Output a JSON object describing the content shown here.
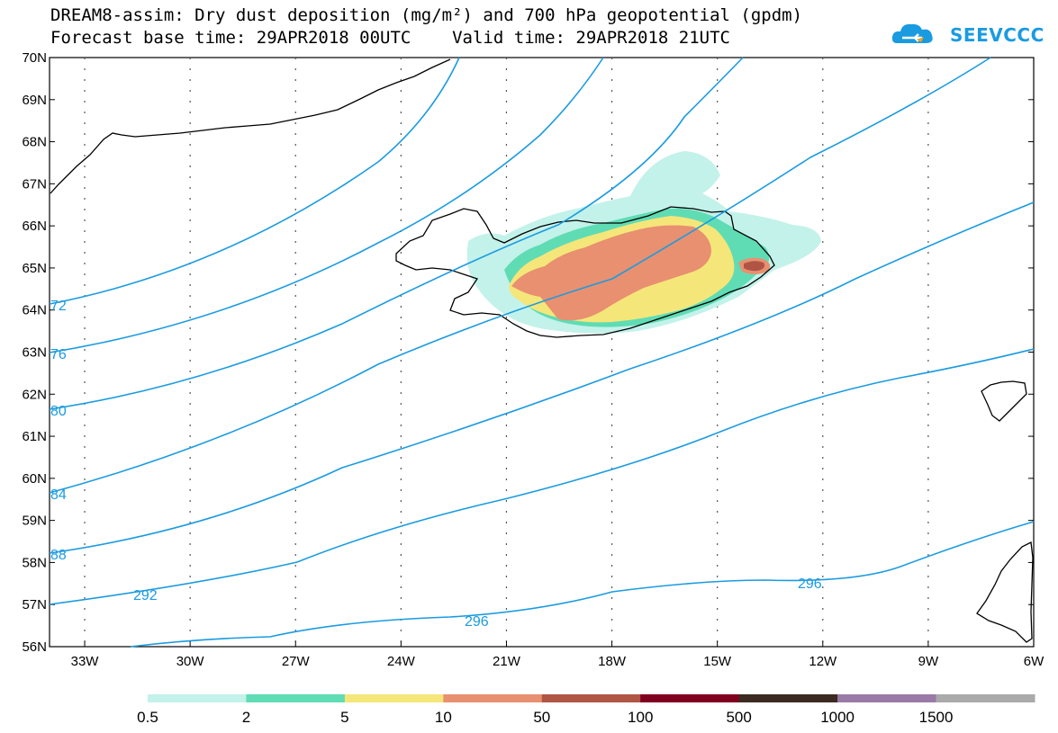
{
  "title": {
    "line1": "DREAM8-assim: Dry dust deposition (mg/m²) and 700 hPa geopotential (gpdm)",
    "line2": "Forecast base time: 29APR2018 00UTC    Valid time: 29APR2018 21UTC"
  },
  "logo": {
    "text": "SEEVCCC",
    "icon": "cloud-icon",
    "color": "#1a9be0"
  },
  "map": {
    "lon_range": [
      -34,
      -6
    ],
    "lat_range": [
      56,
      70
    ],
    "lat_ticks": [
      "70N",
      "69N",
      "68N",
      "67N",
      "66N",
      "65N",
      "64N",
      "63N",
      "62N",
      "61N",
      "60N",
      "59N",
      "58N",
      "57N",
      "56N"
    ],
    "lon_ticks": [
      "33W",
      "30W",
      "27W",
      "24W",
      "21W",
      "18W",
      "15W",
      "12W",
      "9W",
      "6W"
    ],
    "contour_color": "#1a9be0",
    "contour_labels": [
      "72",
      "76",
      "80",
      "84",
      "88",
      "292",
      "296",
      "296"
    ]
  },
  "legend": {
    "labels": [
      "0.5",
      "2",
      "5",
      "10",
      "50",
      "100",
      "500",
      "1000",
      "1500"
    ],
    "colors": [
      "#c3f2ea",
      "#5fdcb4",
      "#f5e67a",
      "#e89070",
      "#b05545",
      "#800020",
      "#3c2a22",
      "#9a7aa6",
      "#aaaaaa"
    ]
  }
}
